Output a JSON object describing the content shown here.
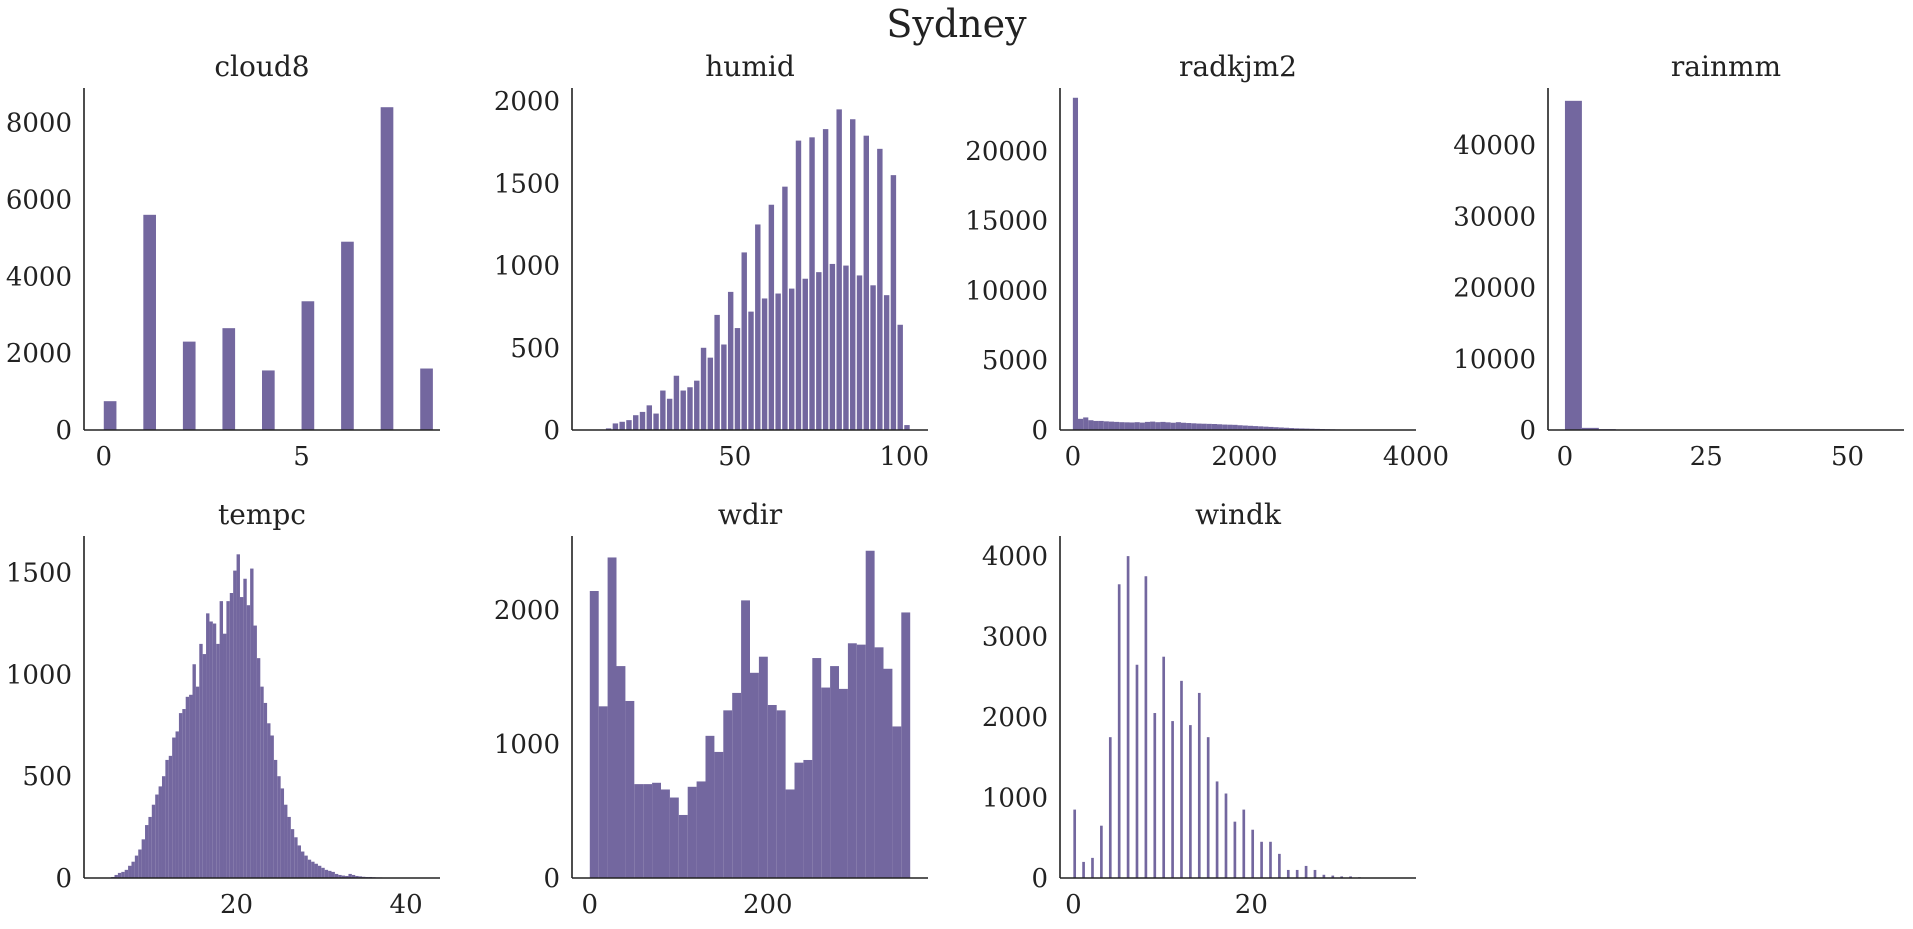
{
  "suptitle": "Sydney",
  "colors": {
    "bar": "#73679f",
    "axis": "#222222"
  },
  "chart_data": [
    {
      "type": "bar",
      "title": "cloud8",
      "grid": false,
      "xlim": [
        -0.5,
        8.5
      ],
      "ylim": [
        0,
        8900
      ],
      "xticks": [
        0,
        5
      ],
      "yticks": [
        0,
        2000,
        4000,
        6000,
        8000
      ],
      "bin_width": 0.32,
      "bins": [
        {
          "x": 0,
          "y": 750
        },
        {
          "x": 1,
          "y": 5600
        },
        {
          "x": 2,
          "y": 2300
        },
        {
          "x": 3,
          "y": 2650
        },
        {
          "x": 4,
          "y": 1550
        },
        {
          "x": 5,
          "y": 3350
        },
        {
          "x": 6,
          "y": 4900
        },
        {
          "x": 7,
          "y": 8400
        },
        {
          "x": 8,
          "y": 1600
        }
      ]
    },
    {
      "type": "bar",
      "title": "humid",
      "grid": false,
      "xlim": [
        2,
        107
      ],
      "ylim": [
        0,
        2080
      ],
      "xticks": [
        50,
        100
      ],
      "yticks": [
        0,
        500,
        1000,
        1500,
        2000
      ],
      "bin_width": 1.6,
      "bins": [
        {
          "x": 12,
          "y": 10
        },
        {
          "x": 14,
          "y": 40
        },
        {
          "x": 16,
          "y": 50
        },
        {
          "x": 18,
          "y": 60
        },
        {
          "x": 20,
          "y": 90
        },
        {
          "x": 22,
          "y": 110
        },
        {
          "x": 24,
          "y": 150
        },
        {
          "x": 26,
          "y": 100
        },
        {
          "x": 28,
          "y": 240
        },
        {
          "x": 30,
          "y": 190
        },
        {
          "x": 32,
          "y": 330
        },
        {
          "x": 34,
          "y": 240
        },
        {
          "x": 36,
          "y": 260
        },
        {
          "x": 38,
          "y": 300
        },
        {
          "x": 40,
          "y": 500
        },
        {
          "x": 42,
          "y": 440
        },
        {
          "x": 44,
          "y": 700
        },
        {
          "x": 46,
          "y": 520
        },
        {
          "x": 48,
          "y": 840
        },
        {
          "x": 50,
          "y": 620
        },
        {
          "x": 52,
          "y": 1080
        },
        {
          "x": 54,
          "y": 720
        },
        {
          "x": 56,
          "y": 1250
        },
        {
          "x": 58,
          "y": 800
        },
        {
          "x": 60,
          "y": 1370
        },
        {
          "x": 62,
          "y": 830
        },
        {
          "x": 64,
          "y": 1480
        },
        {
          "x": 66,
          "y": 860
        },
        {
          "x": 68,
          "y": 1760
        },
        {
          "x": 70,
          "y": 920
        },
        {
          "x": 72,
          "y": 1780
        },
        {
          "x": 74,
          "y": 960
        },
        {
          "x": 76,
          "y": 1830
        },
        {
          "x": 78,
          "y": 1010
        },
        {
          "x": 80,
          "y": 1950
        },
        {
          "x": 82,
          "y": 1000
        },
        {
          "x": 84,
          "y": 1890
        },
        {
          "x": 86,
          "y": 940
        },
        {
          "x": 88,
          "y": 1790
        },
        {
          "x": 90,
          "y": 880
        },
        {
          "x": 92,
          "y": 1710
        },
        {
          "x": 94,
          "y": 820
        },
        {
          "x": 96,
          "y": 1550
        },
        {
          "x": 98,
          "y": 640
        },
        {
          "x": 100,
          "y": 30
        }
      ]
    },
    {
      "type": "bar",
      "title": "radkjm2",
      "grid": false,
      "xlim": [
        -150,
        4000
      ],
      "ylim": [
        0,
        24500
      ],
      "xticks": [
        0,
        2000,
        4000
      ],
      "yticks": [
        0,
        5000,
        10000,
        15000,
        20000
      ],
      "bin_width": 60,
      "bins": [
        {
          "x": 0,
          "y": 23800
        },
        {
          "x": 60,
          "y": 800
        },
        {
          "x": 120,
          "y": 900
        },
        {
          "x": 180,
          "y": 700
        },
        {
          "x": 240,
          "y": 650
        },
        {
          "x": 300,
          "y": 650
        },
        {
          "x": 360,
          "y": 620
        },
        {
          "x": 420,
          "y": 600
        },
        {
          "x": 480,
          "y": 580
        },
        {
          "x": 540,
          "y": 560
        },
        {
          "x": 600,
          "y": 550
        },
        {
          "x": 660,
          "y": 540
        },
        {
          "x": 720,
          "y": 560
        },
        {
          "x": 780,
          "y": 530
        },
        {
          "x": 840,
          "y": 580
        },
        {
          "x": 900,
          "y": 600
        },
        {
          "x": 960,
          "y": 560
        },
        {
          "x": 1020,
          "y": 580
        },
        {
          "x": 1080,
          "y": 550
        },
        {
          "x": 1140,
          "y": 520
        },
        {
          "x": 1200,
          "y": 560
        },
        {
          "x": 1260,
          "y": 520
        },
        {
          "x": 1320,
          "y": 500
        },
        {
          "x": 1380,
          "y": 480
        },
        {
          "x": 1440,
          "y": 460
        },
        {
          "x": 1500,
          "y": 450
        },
        {
          "x": 1560,
          "y": 440
        },
        {
          "x": 1620,
          "y": 430
        },
        {
          "x": 1680,
          "y": 410
        },
        {
          "x": 1740,
          "y": 390
        },
        {
          "x": 1800,
          "y": 380
        },
        {
          "x": 1860,
          "y": 370
        },
        {
          "x": 1920,
          "y": 340
        },
        {
          "x": 1980,
          "y": 320
        },
        {
          "x": 2040,
          "y": 300
        },
        {
          "x": 2100,
          "y": 280
        },
        {
          "x": 2160,
          "y": 260
        },
        {
          "x": 2220,
          "y": 240
        },
        {
          "x": 2280,
          "y": 220
        },
        {
          "x": 2340,
          "y": 200
        },
        {
          "x": 2400,
          "y": 180
        },
        {
          "x": 2460,
          "y": 160
        },
        {
          "x": 2520,
          "y": 140
        },
        {
          "x": 2580,
          "y": 120
        },
        {
          "x": 2640,
          "y": 110
        },
        {
          "x": 2700,
          "y": 100
        },
        {
          "x": 2760,
          "y": 90
        },
        {
          "x": 2820,
          "y": 80
        },
        {
          "x": 2880,
          "y": 70
        },
        {
          "x": 2940,
          "y": 60
        },
        {
          "x": 3000,
          "y": 50
        },
        {
          "x": 3060,
          "y": 40
        },
        {
          "x": 3120,
          "y": 35
        },
        {
          "x": 3180,
          "y": 30
        },
        {
          "x": 3240,
          "y": 25
        },
        {
          "x": 3300,
          "y": 25
        },
        {
          "x": 3360,
          "y": 20
        },
        {
          "x": 3420,
          "y": 15
        },
        {
          "x": 3480,
          "y": 12
        },
        {
          "x": 3540,
          "y": 10
        },
        {
          "x": 3600,
          "y": 8
        }
      ]
    },
    {
      "type": "bar",
      "title": "rainmm",
      "grid": false,
      "xlim": [
        -3,
        60
      ],
      "ylim": [
        0,
        48000
      ],
      "xticks": [
        0,
        25,
        50
      ],
      "yticks": [
        0,
        10000,
        20000,
        30000,
        40000
      ],
      "bin_width": 3,
      "bins": [
        {
          "x": 0,
          "y": 46200
        },
        {
          "x": 3,
          "y": 300
        },
        {
          "x": 6,
          "y": 120
        },
        {
          "x": 9,
          "y": 60
        },
        {
          "x": 12,
          "y": 30
        },
        {
          "x": 15,
          "y": 15
        }
      ]
    },
    {
      "type": "bar",
      "title": "tempc",
      "grid": false,
      "xlim": [
        2,
        44
      ],
      "ylim": [
        0,
        1680
      ],
      "xticks": [
        20,
        40
      ],
      "yticks": [
        0,
        500,
        1000,
        1500
      ],
      "bin_width": 0.4,
      "bins": [
        {
          "x": 5.2,
          "y": 5
        },
        {
          "x": 5.6,
          "y": 15
        },
        {
          "x": 6.0,
          "y": 25
        },
        {
          "x": 6.4,
          "y": 30
        },
        {
          "x": 6.8,
          "y": 40
        },
        {
          "x": 7.2,
          "y": 60
        },
        {
          "x": 7.6,
          "y": 80
        },
        {
          "x": 8.0,
          "y": 110
        },
        {
          "x": 8.4,
          "y": 140
        },
        {
          "x": 8.8,
          "y": 190
        },
        {
          "x": 9.2,
          "y": 260
        },
        {
          "x": 9.6,
          "y": 300
        },
        {
          "x": 10.0,
          "y": 360
        },
        {
          "x": 10.4,
          "y": 410
        },
        {
          "x": 10.8,
          "y": 450
        },
        {
          "x": 11.2,
          "y": 500
        },
        {
          "x": 11.6,
          "y": 580
        },
        {
          "x": 12.0,
          "y": 600
        },
        {
          "x": 12.4,
          "y": 690
        },
        {
          "x": 12.8,
          "y": 720
        },
        {
          "x": 13.2,
          "y": 810
        },
        {
          "x": 13.6,
          "y": 830
        },
        {
          "x": 14.0,
          "y": 890
        },
        {
          "x": 14.4,
          "y": 900
        },
        {
          "x": 14.8,
          "y": 1050
        },
        {
          "x": 15.2,
          "y": 940
        },
        {
          "x": 15.6,
          "y": 1150
        },
        {
          "x": 16.0,
          "y": 1100
        },
        {
          "x": 16.4,
          "y": 1300
        },
        {
          "x": 16.8,
          "y": 1260
        },
        {
          "x": 17.2,
          "y": 1250
        },
        {
          "x": 17.6,
          "y": 1150
        },
        {
          "x": 18.0,
          "y": 1360
        },
        {
          "x": 18.4,
          "y": 1200
        },
        {
          "x": 18.8,
          "y": 1360
        },
        {
          "x": 19.2,
          "y": 1400
        },
        {
          "x": 19.6,
          "y": 1510
        },
        {
          "x": 20.0,
          "y": 1590
        },
        {
          "x": 20.4,
          "y": 1380
        },
        {
          "x": 20.8,
          "y": 1470
        },
        {
          "x": 21.2,
          "y": 1340
        },
        {
          "x": 21.6,
          "y": 1520
        },
        {
          "x": 22.0,
          "y": 1240
        },
        {
          "x": 22.4,
          "y": 1080
        },
        {
          "x": 22.8,
          "y": 940
        },
        {
          "x": 23.2,
          "y": 860
        },
        {
          "x": 23.6,
          "y": 760
        },
        {
          "x": 24.0,
          "y": 700
        },
        {
          "x": 24.4,
          "y": 580
        },
        {
          "x": 24.8,
          "y": 500
        },
        {
          "x": 25.2,
          "y": 440
        },
        {
          "x": 25.6,
          "y": 360
        },
        {
          "x": 26.0,
          "y": 300
        },
        {
          "x": 26.4,
          "y": 240
        },
        {
          "x": 26.8,
          "y": 200
        },
        {
          "x": 27.2,
          "y": 160
        },
        {
          "x": 27.6,
          "y": 130
        },
        {
          "x": 28.0,
          "y": 110
        },
        {
          "x": 28.4,
          "y": 90
        },
        {
          "x": 28.8,
          "y": 80
        },
        {
          "x": 29.2,
          "y": 70
        },
        {
          "x": 29.6,
          "y": 60
        },
        {
          "x": 30.0,
          "y": 50
        },
        {
          "x": 30.4,
          "y": 40
        },
        {
          "x": 30.8,
          "y": 35
        },
        {
          "x": 31.2,
          "y": 30
        },
        {
          "x": 31.6,
          "y": 20
        },
        {
          "x": 32.0,
          "y": 15
        },
        {
          "x": 32.4,
          "y": 12
        },
        {
          "x": 32.8,
          "y": 10
        },
        {
          "x": 33.2,
          "y": 20
        },
        {
          "x": 33.6,
          "y": 15
        },
        {
          "x": 34.0,
          "y": 10
        },
        {
          "x": 34.4,
          "y": 8
        },
        {
          "x": 34.8,
          "y": 6
        },
        {
          "x": 35.2,
          "y": 5
        },
        {
          "x": 35.6,
          "y": 5
        },
        {
          "x": 36.0,
          "y": 4
        },
        {
          "x": 36.4,
          "y": 3
        },
        {
          "x": 36.8,
          "y": 3
        }
      ]
    },
    {
      "type": "bar",
      "title": "wdir",
      "grid": false,
      "xlim": [
        -20,
        380
      ],
      "ylim": [
        0,
        2550
      ],
      "xticks": [
        0,
        200
      ],
      "yticks": [
        0,
        1000,
        2000
      ],
      "bin_width": 10,
      "bins": [
        {
          "x": 0,
          "y": 2140
        },
        {
          "x": 10,
          "y": 1280
        },
        {
          "x": 20,
          "y": 2390
        },
        {
          "x": 30,
          "y": 1580
        },
        {
          "x": 40,
          "y": 1320
        },
        {
          "x": 50,
          "y": 700
        },
        {
          "x": 60,
          "y": 700
        },
        {
          "x": 70,
          "y": 710
        },
        {
          "x": 80,
          "y": 660
        },
        {
          "x": 90,
          "y": 600
        },
        {
          "x": 100,
          "y": 470
        },
        {
          "x": 110,
          "y": 680
        },
        {
          "x": 120,
          "y": 720
        },
        {
          "x": 130,
          "y": 1060
        },
        {
          "x": 140,
          "y": 940
        },
        {
          "x": 150,
          "y": 1250
        },
        {
          "x": 160,
          "y": 1380
        },
        {
          "x": 170,
          "y": 2070
        },
        {
          "x": 180,
          "y": 1530
        },
        {
          "x": 190,
          "y": 1650
        },
        {
          "x": 200,
          "y": 1290
        },
        {
          "x": 210,
          "y": 1250
        },
        {
          "x": 220,
          "y": 660
        },
        {
          "x": 230,
          "y": 860
        },
        {
          "x": 240,
          "y": 880
        },
        {
          "x": 250,
          "y": 1640
        },
        {
          "x": 260,
          "y": 1420
        },
        {
          "x": 270,
          "y": 1580
        },
        {
          "x": 280,
          "y": 1410
        },
        {
          "x": 290,
          "y": 1750
        },
        {
          "x": 300,
          "y": 1740
        },
        {
          "x": 310,
          "y": 2440
        },
        {
          "x": 320,
          "y": 1720
        },
        {
          "x": 330,
          "y": 1560
        },
        {
          "x": 340,
          "y": 1130
        },
        {
          "x": 350,
          "y": 1980
        }
      ]
    },
    {
      "type": "bar",
      "title": "windk",
      "grid": false,
      "xlim": [
        -1.5,
        38.5
      ],
      "ylim": [
        0,
        4250
      ],
      "xticks": [
        0,
        20
      ],
      "yticks": [
        0,
        1000,
        2000,
        3000,
        4000
      ],
      "bin_width": 0.3,
      "bins": [
        {
          "x": 0,
          "y": 850
        },
        {
          "x": 1,
          "y": 200
        },
        {
          "x": 2,
          "y": 250
        },
        {
          "x": 3,
          "y": 650
        },
        {
          "x": 4,
          "y": 1750
        },
        {
          "x": 5,
          "y": 3650
        },
        {
          "x": 6,
          "y": 4000
        },
        {
          "x": 7,
          "y": 2650
        },
        {
          "x": 8,
          "y": 3750
        },
        {
          "x": 9,
          "y": 2050
        },
        {
          "x": 10,
          "y": 2750
        },
        {
          "x": 11,
          "y": 1950
        },
        {
          "x": 12,
          "y": 2450
        },
        {
          "x": 13,
          "y": 1900
        },
        {
          "x": 14,
          "y": 2300
        },
        {
          "x": 15,
          "y": 1750
        },
        {
          "x": 16,
          "y": 1200
        },
        {
          "x": 17,
          "y": 1050
        },
        {
          "x": 18,
          "y": 700
        },
        {
          "x": 19,
          "y": 850
        },
        {
          "x": 20,
          "y": 600
        },
        {
          "x": 21,
          "y": 450
        },
        {
          "x": 22,
          "y": 450
        },
        {
          "x": 23,
          "y": 300
        },
        {
          "x": 24,
          "y": 100
        },
        {
          "x": 25,
          "y": 100
        },
        {
          "x": 26,
          "y": 150
        },
        {
          "x": 27,
          "y": 100
        },
        {
          "x": 28,
          "y": 40
        },
        {
          "x": 29,
          "y": 30
        },
        {
          "x": 30,
          "y": 20
        },
        {
          "x": 31,
          "y": 20
        },
        {
          "x": 32,
          "y": 10
        }
      ]
    }
  ]
}
